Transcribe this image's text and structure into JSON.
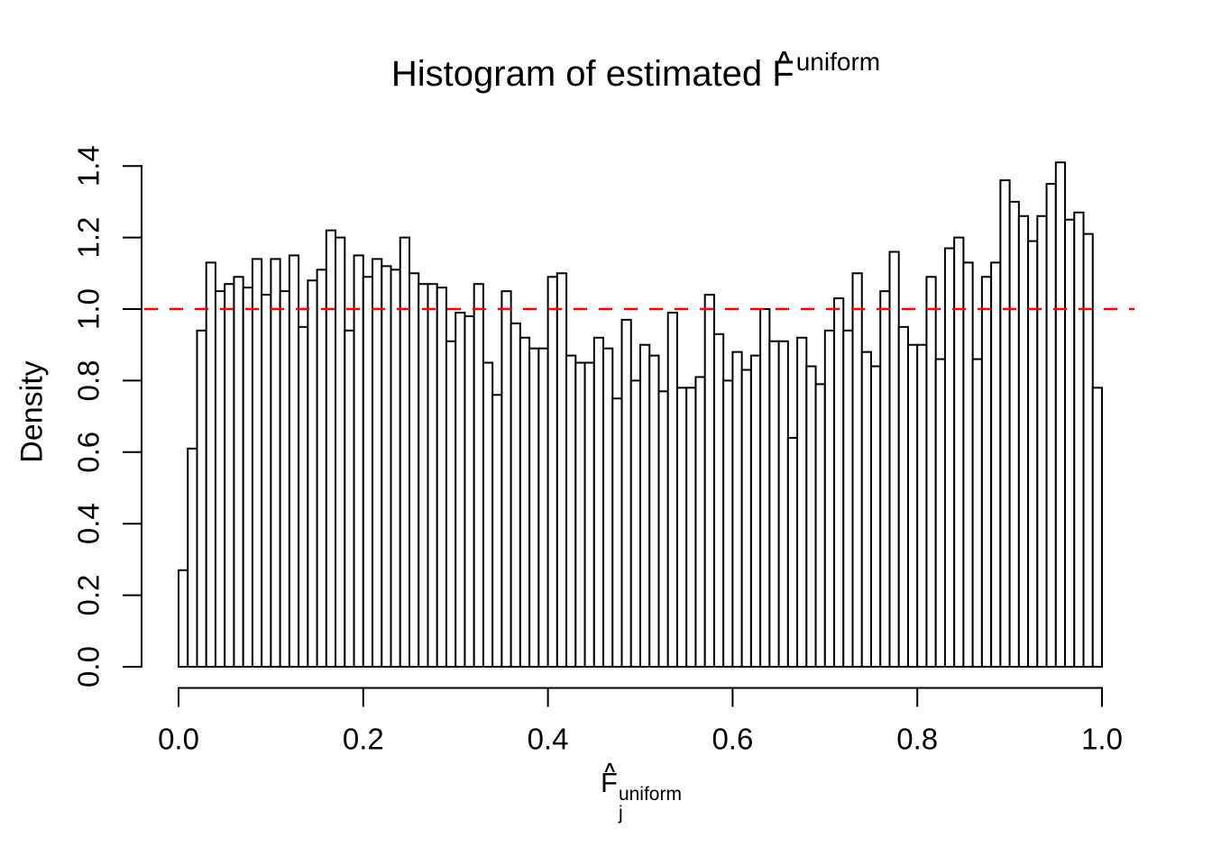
{
  "title": {
    "text": "Histogram of estimated F̂ uniform",
    "prefix": "Histogram of estimated ",
    "f_letter": "F",
    "hat_glyph": "∧",
    "superscript": "uniform"
  },
  "axes": {
    "y_label": "Density",
    "x_label": {
      "text": "F̂ j uniform",
      "f_letter": "F",
      "hat_glyph": "∧",
      "subscript": "j",
      "superscript": "uniform"
    },
    "x_tick_labels": [
      "0.0",
      "0.2",
      "0.4",
      "0.6",
      "0.8",
      "1.0"
    ],
    "y_tick_labels": [
      "0.0",
      "0.2",
      "0.4",
      "0.6",
      "0.8",
      "1.0",
      "1.2",
      "1.4"
    ]
  },
  "chart_data": {
    "type": "bar",
    "subtype": "histogram",
    "title": "Histogram of estimated F̂ uniform",
    "xlabel": "F̂ j uniform",
    "ylabel": "Density",
    "xlim": [
      0,
      1
    ],
    "ylim": [
      0,
      1.4
    ],
    "grid": false,
    "legend": null,
    "bin_start": 0.0,
    "bin_width": 0.01,
    "x_ticks": [
      0.0,
      0.2,
      0.4,
      0.6,
      0.8,
      1.0
    ],
    "y_ticks": [
      0.0,
      0.2,
      0.4,
      0.6,
      0.8,
      1.0,
      1.2,
      1.4
    ],
    "values": [
      0.27,
      0.61,
      0.94,
      1.13,
      1.05,
      1.07,
      1.09,
      1.06,
      1.14,
      1.04,
      1.14,
      1.05,
      1.15,
      0.95,
      1.08,
      1.11,
      1.22,
      1.2,
      0.94,
      1.15,
      1.09,
      1.14,
      1.12,
      1.11,
      1.2,
      1.1,
      1.07,
      1.07,
      1.06,
      0.91,
      0.99,
      0.98,
      1.07,
      0.85,
      0.76,
      1.05,
      0.96,
      0.92,
      0.89,
      0.89,
      1.09,
      1.1,
      0.87,
      0.85,
      0.85,
      0.92,
      0.89,
      0.75,
      0.97,
      0.8,
      0.9,
      0.87,
      0.77,
      0.99,
      0.78,
      0.78,
      0.81,
      1.04,
      0.93,
      0.8,
      0.88,
      0.83,
      0.87,
      1.0,
      0.91,
      0.91,
      0.64,
      0.92,
      0.84,
      0.79,
      0.94,
      1.03,
      0.94,
      1.1,
      0.88,
      0.84,
      1.05,
      1.16,
      0.95,
      0.9,
      0.9,
      1.09,
      0.86,
      1.17,
      1.2,
      1.13,
      0.86,
      1.09,
      1.13,
      1.36,
      1.3,
      1.26,
      1.19,
      1.26,
      1.35,
      1.41,
      1.25,
      1.27,
      1.21,
      0.78
    ],
    "reference_line": {
      "y": 1.0,
      "color": "#FF0000",
      "line_style": "dashed"
    },
    "bar_fill": "#FFFFFF",
    "bar_stroke": "#000000",
    "axis_color": "#000000",
    "background": "#FFFFFF"
  }
}
